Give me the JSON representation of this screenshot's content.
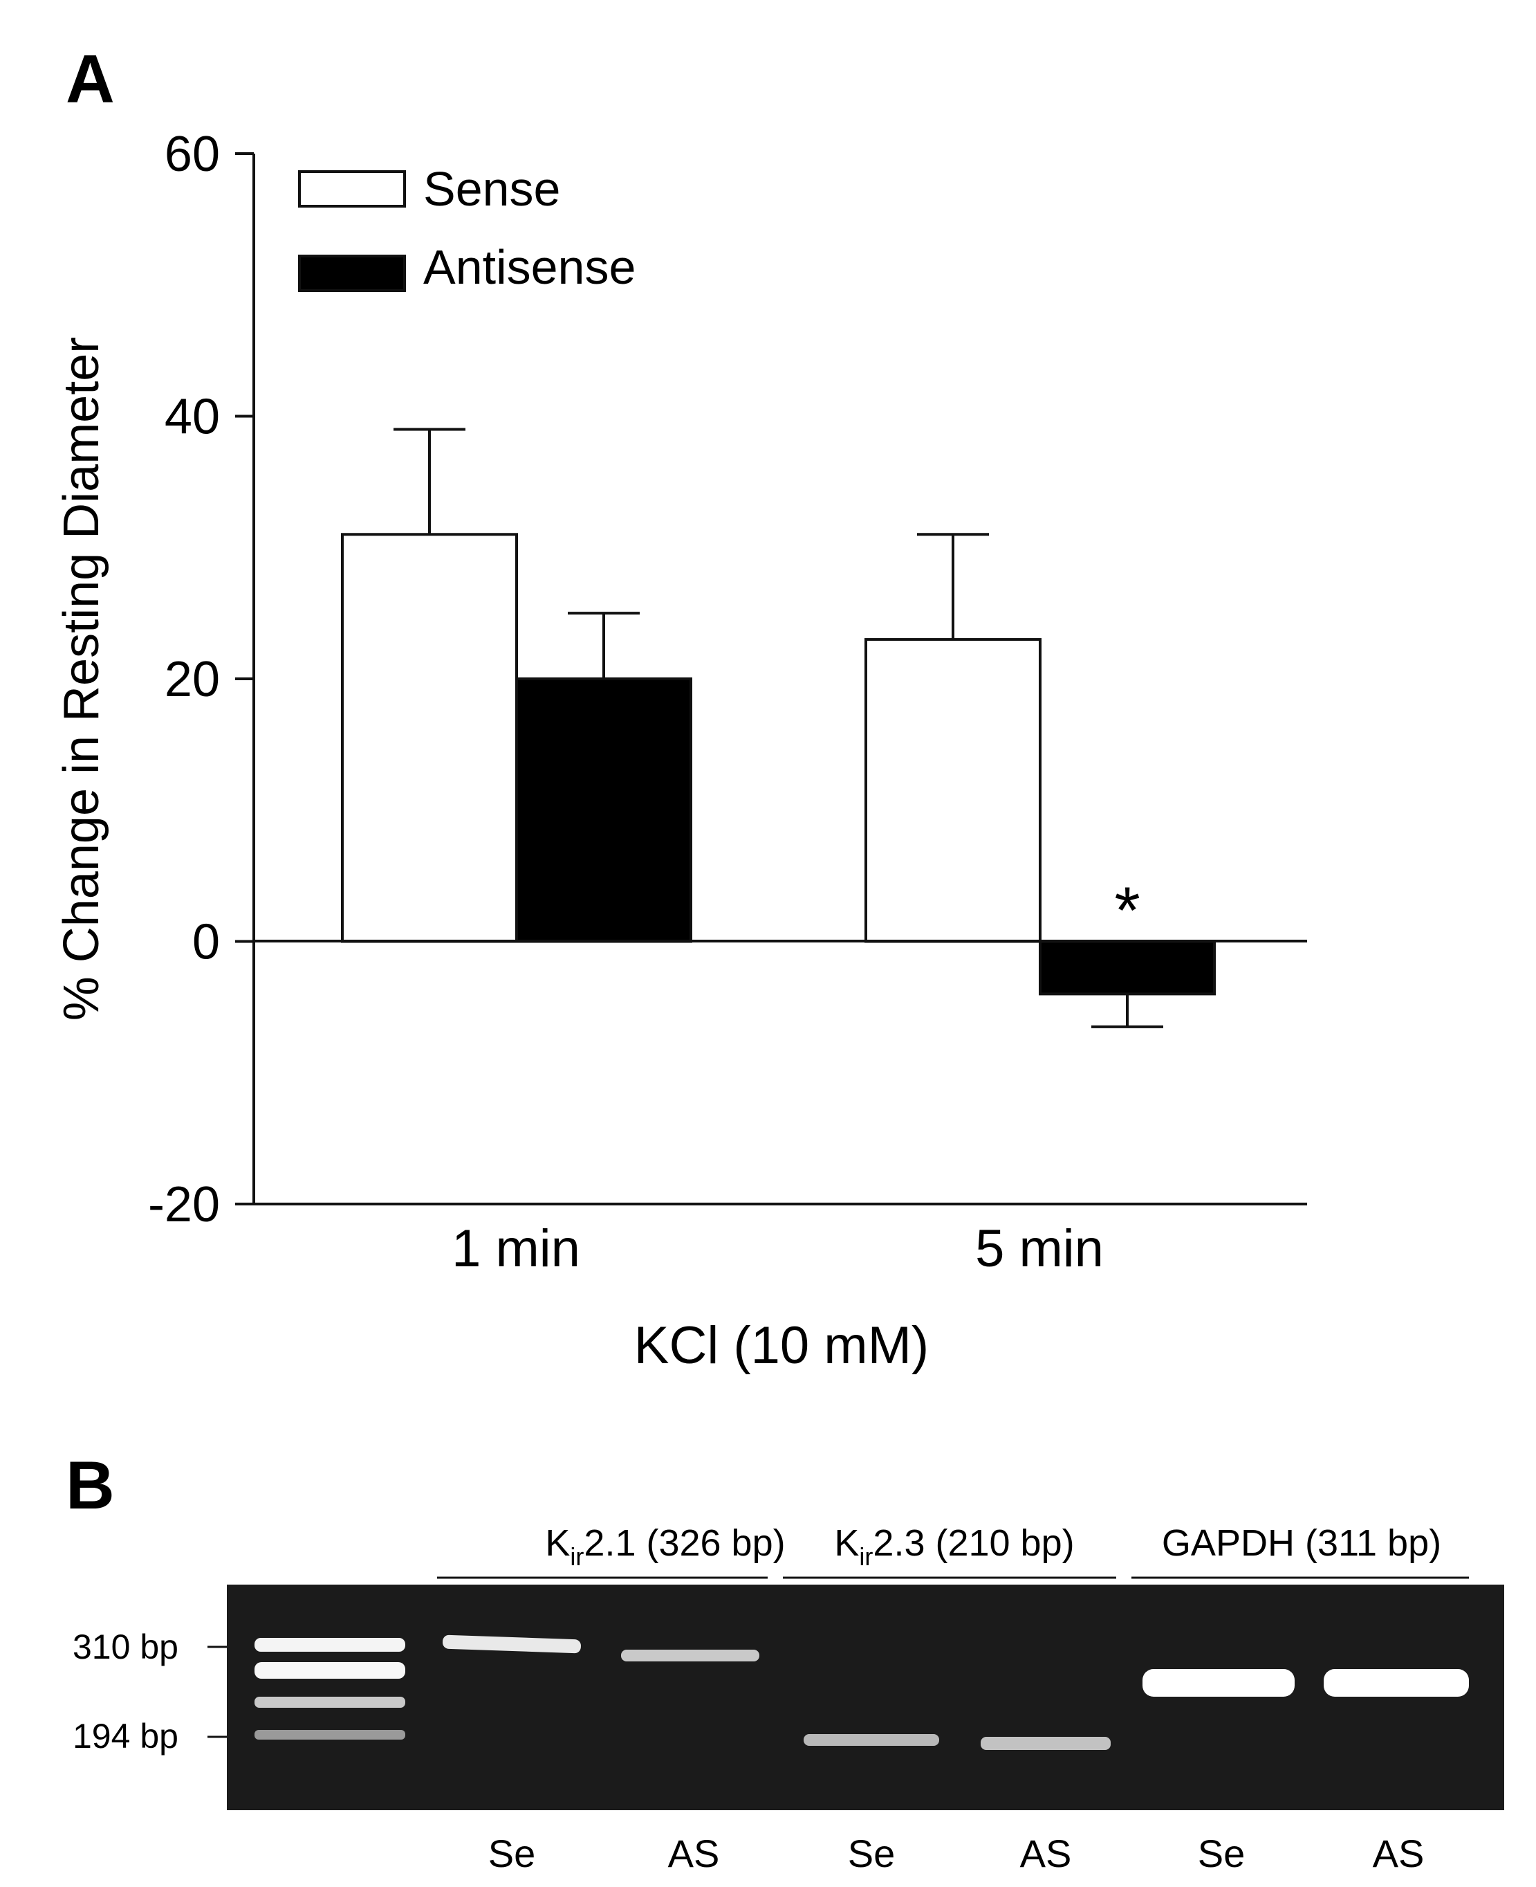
{
  "panel_a_label": "A",
  "panel_b_label": "B",
  "chart_data": {
    "type": "bar",
    "ylabel": "% Change in Resting Diameter",
    "xlabel": "KCl (10 mM)",
    "categories": [
      "1 min",
      "5 min"
    ],
    "ylim": [
      -20,
      60
    ],
    "yticks": [
      -20,
      0,
      20,
      40,
      60
    ],
    "legend_position": "top-left",
    "grid": false,
    "series": [
      {
        "name": "Sense",
        "color": "#ffffff",
        "values": [
          31,
          23
        ],
        "errors": [
          8,
          8
        ]
      },
      {
        "name": "Antisense",
        "color": "#000000",
        "values": [
          20,
          -4
        ],
        "errors": [
          5,
          2.5
        ]
      }
    ],
    "annotations": [
      {
        "text": "*",
        "category": "5 min",
        "series": "Antisense"
      }
    ]
  },
  "gel": {
    "groups": [
      {
        "prefix": "K",
        "subscript": "ir",
        "suffix": "2.1 (326 bp)"
      },
      {
        "prefix": "K",
        "subscript": "ir",
        "suffix": "2.3 (210 bp)"
      },
      {
        "prefix": "GAPDH (311 bp)",
        "subscript": "",
        "suffix": ""
      }
    ],
    "markers": [
      "310 bp",
      "194 bp"
    ],
    "lanes": [
      "Se",
      "AS",
      "Se",
      "AS",
      "Se",
      "AS"
    ]
  }
}
